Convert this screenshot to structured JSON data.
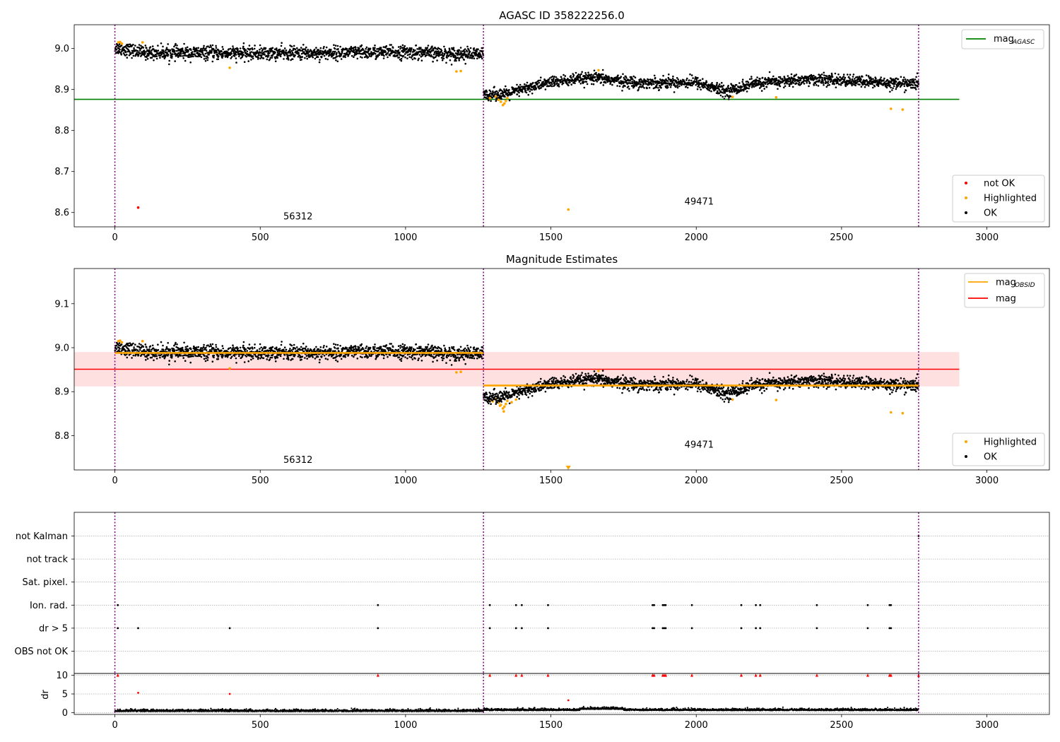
{
  "figure": {
    "colors": {
      "ok": "#000000",
      "highlighted": "#ffa500",
      "not_ok": "#ff0000",
      "agasc_line": "#008000",
      "obsid_line": "#ffa500",
      "mag_line": "#ff0000",
      "mag_band": "#ffcccc",
      "obs_sep": "#800080",
      "grid": "#b0b0b0"
    },
    "observations": [
      {
        "obsid": "56312",
        "start": 0,
        "end": 1268
      },
      {
        "obsid": "49471",
        "start": 1268,
        "end": 2765
      }
    ]
  },
  "chart_data": [
    {
      "type": "scatter",
      "title": "AGASC ID 358222256.0",
      "xlim": [
        -140,
        3215
      ],
      "ylim": [
        8.565,
        9.058
      ],
      "xticks": [
        0,
        500,
        1000,
        1500,
        2000,
        2500,
        3000
      ],
      "xtick_labels": [
        "0",
        "500",
        "1000",
        "1500",
        "2000",
        "2500",
        "3000"
      ],
      "yticks": [
        8.6,
        8.7,
        8.8,
        8.9,
        9.0
      ],
      "ytick_labels": [
        "8.6",
        "8.7",
        "8.8",
        "8.9",
        "9.0"
      ],
      "obs_boundaries": [
        0,
        1268,
        2765
      ],
      "obsid_labels": [
        {
          "text": "56312",
          "x": 630,
          "y": 8.583
        },
        {
          "text": "49471",
          "x": 2010,
          "y": 8.619
        }
      ],
      "hlines": [
        {
          "name": "mag_AGASC",
          "y": 8.876,
          "x0": -140,
          "x1": 2905
        }
      ],
      "series_trend": [
        {
          "x0": 0,
          "x1": 1268,
          "segments": [
            [
              0,
              9.002
            ],
            [
              100,
              8.99
            ],
            [
              500,
              8.988
            ],
            [
              1000,
              8.991
            ],
            [
              1268,
              8.985
            ]
          ],
          "noise": 0.008
        },
        {
          "x0": 1268,
          "x1": 2765,
          "segments": [
            [
              1268,
              8.888
            ],
            [
              1350,
              8.889
            ],
            [
              1400,
              8.9
            ],
            [
              1500,
              8.918
            ],
            [
              1650,
              8.928
            ],
            [
              1800,
              8.916
            ],
            [
              2000,
              8.918
            ],
            [
              2100,
              8.895
            ],
            [
              2200,
              8.915
            ],
            [
              2400,
              8.925
            ],
            [
              2765,
              8.913
            ]
          ],
          "noise": 0.007
        }
      ],
      "highlighted": [
        [
          12,
          9.015
        ],
        [
          18,
          9.016
        ],
        [
          24,
          9.012
        ],
        [
          95,
          9.015
        ],
        [
          395,
          8.953
        ],
        [
          1175,
          8.944
        ],
        [
          1190,
          8.945
        ],
        [
          1290,
          8.879
        ],
        [
          1310,
          8.883
        ],
        [
          1320,
          8.875
        ],
        [
          1328,
          8.87
        ],
        [
          1335,
          8.862
        ],
        [
          1340,
          8.866
        ],
        [
          1345,
          8.872
        ],
        [
          1350,
          8.879
        ],
        [
          1560,
          8.607
        ],
        [
          1664,
          8.947
        ],
        [
          2125,
          8.882
        ],
        [
          2275,
          8.881
        ],
        [
          2670,
          8.853
        ],
        [
          2710,
          8.851
        ]
      ],
      "not_ok": [
        [
          80,
          8.612
        ]
      ],
      "legend_upper": [
        {
          "label": "mag",
          "sub": "AGASC",
          "color": "#008000"
        }
      ],
      "legend_lower": [
        {
          "label": "not OK",
          "color": "#ff0000"
        },
        {
          "label": "Highlighted",
          "color": "#ffa500"
        },
        {
          "label": "OK",
          "color": "#000000"
        }
      ]
    },
    {
      "type": "scatter",
      "title": "Magnitude Estimates",
      "xlim": [
        -140,
        3215
      ],
      "ylim": [
        8.722,
        9.18
      ],
      "xticks": [
        0,
        500,
        1000,
        1500,
        2000,
        2500,
        3000
      ],
      "xtick_labels": [
        "0",
        "500",
        "1000",
        "1500",
        "2000",
        "2500",
        "3000"
      ],
      "yticks": [
        8.8,
        8.9,
        9.0,
        9.1
      ],
      "ytick_labels": [
        "8.8",
        "8.9",
        "9.0",
        "9.1"
      ],
      "obs_boundaries": [
        0,
        1268,
        2765
      ],
      "obsid_labels": [
        {
          "text": "56312",
          "x": 630,
          "y": 8.738
        },
        {
          "text": "49471",
          "x": 2010,
          "y": 8.773
        }
      ],
      "band": {
        "y0": 8.912,
        "y1": 8.99,
        "x0": -140,
        "x1": 2905
      },
      "hlines": [
        {
          "name": "mag",
          "y": 8.951,
          "x0": -140,
          "x1": 2905
        }
      ],
      "obsid_mags": [
        {
          "x0": 0,
          "x1": 1268,
          "y": 8.988
        },
        {
          "x0": 1268,
          "x1": 2765,
          "y": 8.914
        }
      ],
      "series_trend": [
        {
          "x0": 0,
          "x1": 1268,
          "segments": [
            [
              0,
              9.002
            ],
            [
              100,
              8.99
            ],
            [
              500,
              8.988
            ],
            [
              1000,
              8.991
            ],
            [
              1268,
              8.985
            ]
          ],
          "noise": 0.008
        },
        {
          "x0": 1268,
          "x1": 2765,
          "segments": [
            [
              1268,
              8.888
            ],
            [
              1350,
              8.889
            ],
            [
              1400,
              8.9
            ],
            [
              1500,
              8.918
            ],
            [
              1650,
              8.928
            ],
            [
              1800,
              8.916
            ],
            [
              2000,
              8.918
            ],
            [
              2100,
              8.895
            ],
            [
              2200,
              8.915
            ],
            [
              2400,
              8.925
            ],
            [
              2765,
              8.913
            ]
          ],
          "noise": 0.007
        }
      ],
      "highlighted": [
        [
          12,
          9.015
        ],
        [
          18,
          9.016
        ],
        [
          24,
          9.012
        ],
        [
          95,
          9.015
        ],
        [
          395,
          8.953
        ],
        [
          1175,
          8.944
        ],
        [
          1190,
          8.945
        ],
        [
          1290,
          8.879
        ],
        [
          1300,
          8.878
        ],
        [
          1310,
          8.883
        ],
        [
          1320,
          8.875
        ],
        [
          1325,
          8.868
        ],
        [
          1328,
          8.87
        ],
        [
          1335,
          8.862
        ],
        [
          1338,
          8.855
        ],
        [
          1340,
          8.866
        ],
        [
          1345,
          8.872
        ],
        [
          1350,
          8.879
        ],
        [
          1365,
          8.876
        ],
        [
          1380,
          8.882
        ],
        [
          1664,
          8.947
        ],
        [
          2125,
          8.882
        ],
        [
          2275,
          8.881
        ],
        [
          2670,
          8.853
        ],
        [
          2710,
          8.851
        ]
      ],
      "clipped_markers": [
        [
          1560,
          8.722
        ]
      ],
      "legend_upper": [
        {
          "label": "mag",
          "sub": "OBSID",
          "color": "#ffa500"
        },
        {
          "label": "mag",
          "sub": "",
          "color": "#ff0000"
        }
      ],
      "legend_lower": [
        {
          "label": "Highlighted",
          "color": "#ffa500"
        },
        {
          "label": "OK",
          "color": "#000000"
        }
      ]
    },
    {
      "type": "scatter",
      "title": "",
      "xlim": [
        -140,
        3215
      ],
      "xticks": [
        0,
        500,
        1000,
        1500,
        2000,
        2500,
        3000
      ],
      "xtick_labels": [
        "0",
        "500",
        "1000",
        "1500",
        "2000",
        "2500",
        "3000"
      ],
      "obs_boundaries": [
        0,
        1268,
        2765
      ],
      "flag_rows": [
        "not Kalman",
        "not track",
        "Sat. pixel.",
        "Ion. rad.",
        "dr > 5",
        "OBS not OK"
      ],
      "flags": {
        "Ion. rad.": [
          10,
          905,
          1290,
          1380,
          1400,
          1490,
          1850,
          1855,
          1885,
          1890,
          1895,
          1985,
          2155,
          2205,
          2220,
          2415,
          2590,
          2665,
          2670
        ],
        "dr > 5": [
          10,
          80,
          395,
          905,
          1290,
          1380,
          1400,
          1490,
          1850,
          1855,
          1885,
          1890,
          1895,
          1985,
          2155,
          2205,
          2220,
          2415,
          2590,
          2665,
          2670
        ],
        "not Kalman": [
          2765
        ]
      },
      "dr": {
        "ylabel": "dr",
        "ylim": [
          -0.5,
          10.5
        ],
        "yticks": [
          0,
          5,
          10
        ],
        "ytick_labels": [
          "0",
          "5",
          "10"
        ],
        "clip_value": 10,
        "high_points": [
          [
            10,
            10
          ],
          [
            80,
            5.3
          ],
          [
            395,
            5.0
          ],
          [
            905,
            10
          ],
          [
            1290,
            10
          ],
          [
            1380,
            10
          ],
          [
            1400,
            10
          ],
          [
            1490,
            10
          ],
          [
            1560,
            3.3
          ],
          [
            1850,
            10
          ],
          [
            1855,
            10
          ],
          [
            1885,
            10
          ],
          [
            1890,
            10
          ],
          [
            1895,
            10
          ],
          [
            1985,
            10
          ],
          [
            2155,
            10
          ],
          [
            2205,
            10
          ],
          [
            2220,
            10
          ],
          [
            2415,
            10
          ],
          [
            2590,
            10
          ],
          [
            2665,
            10
          ],
          [
            2670,
            10
          ],
          [
            2765,
            10
          ]
        ]
      }
    }
  ]
}
